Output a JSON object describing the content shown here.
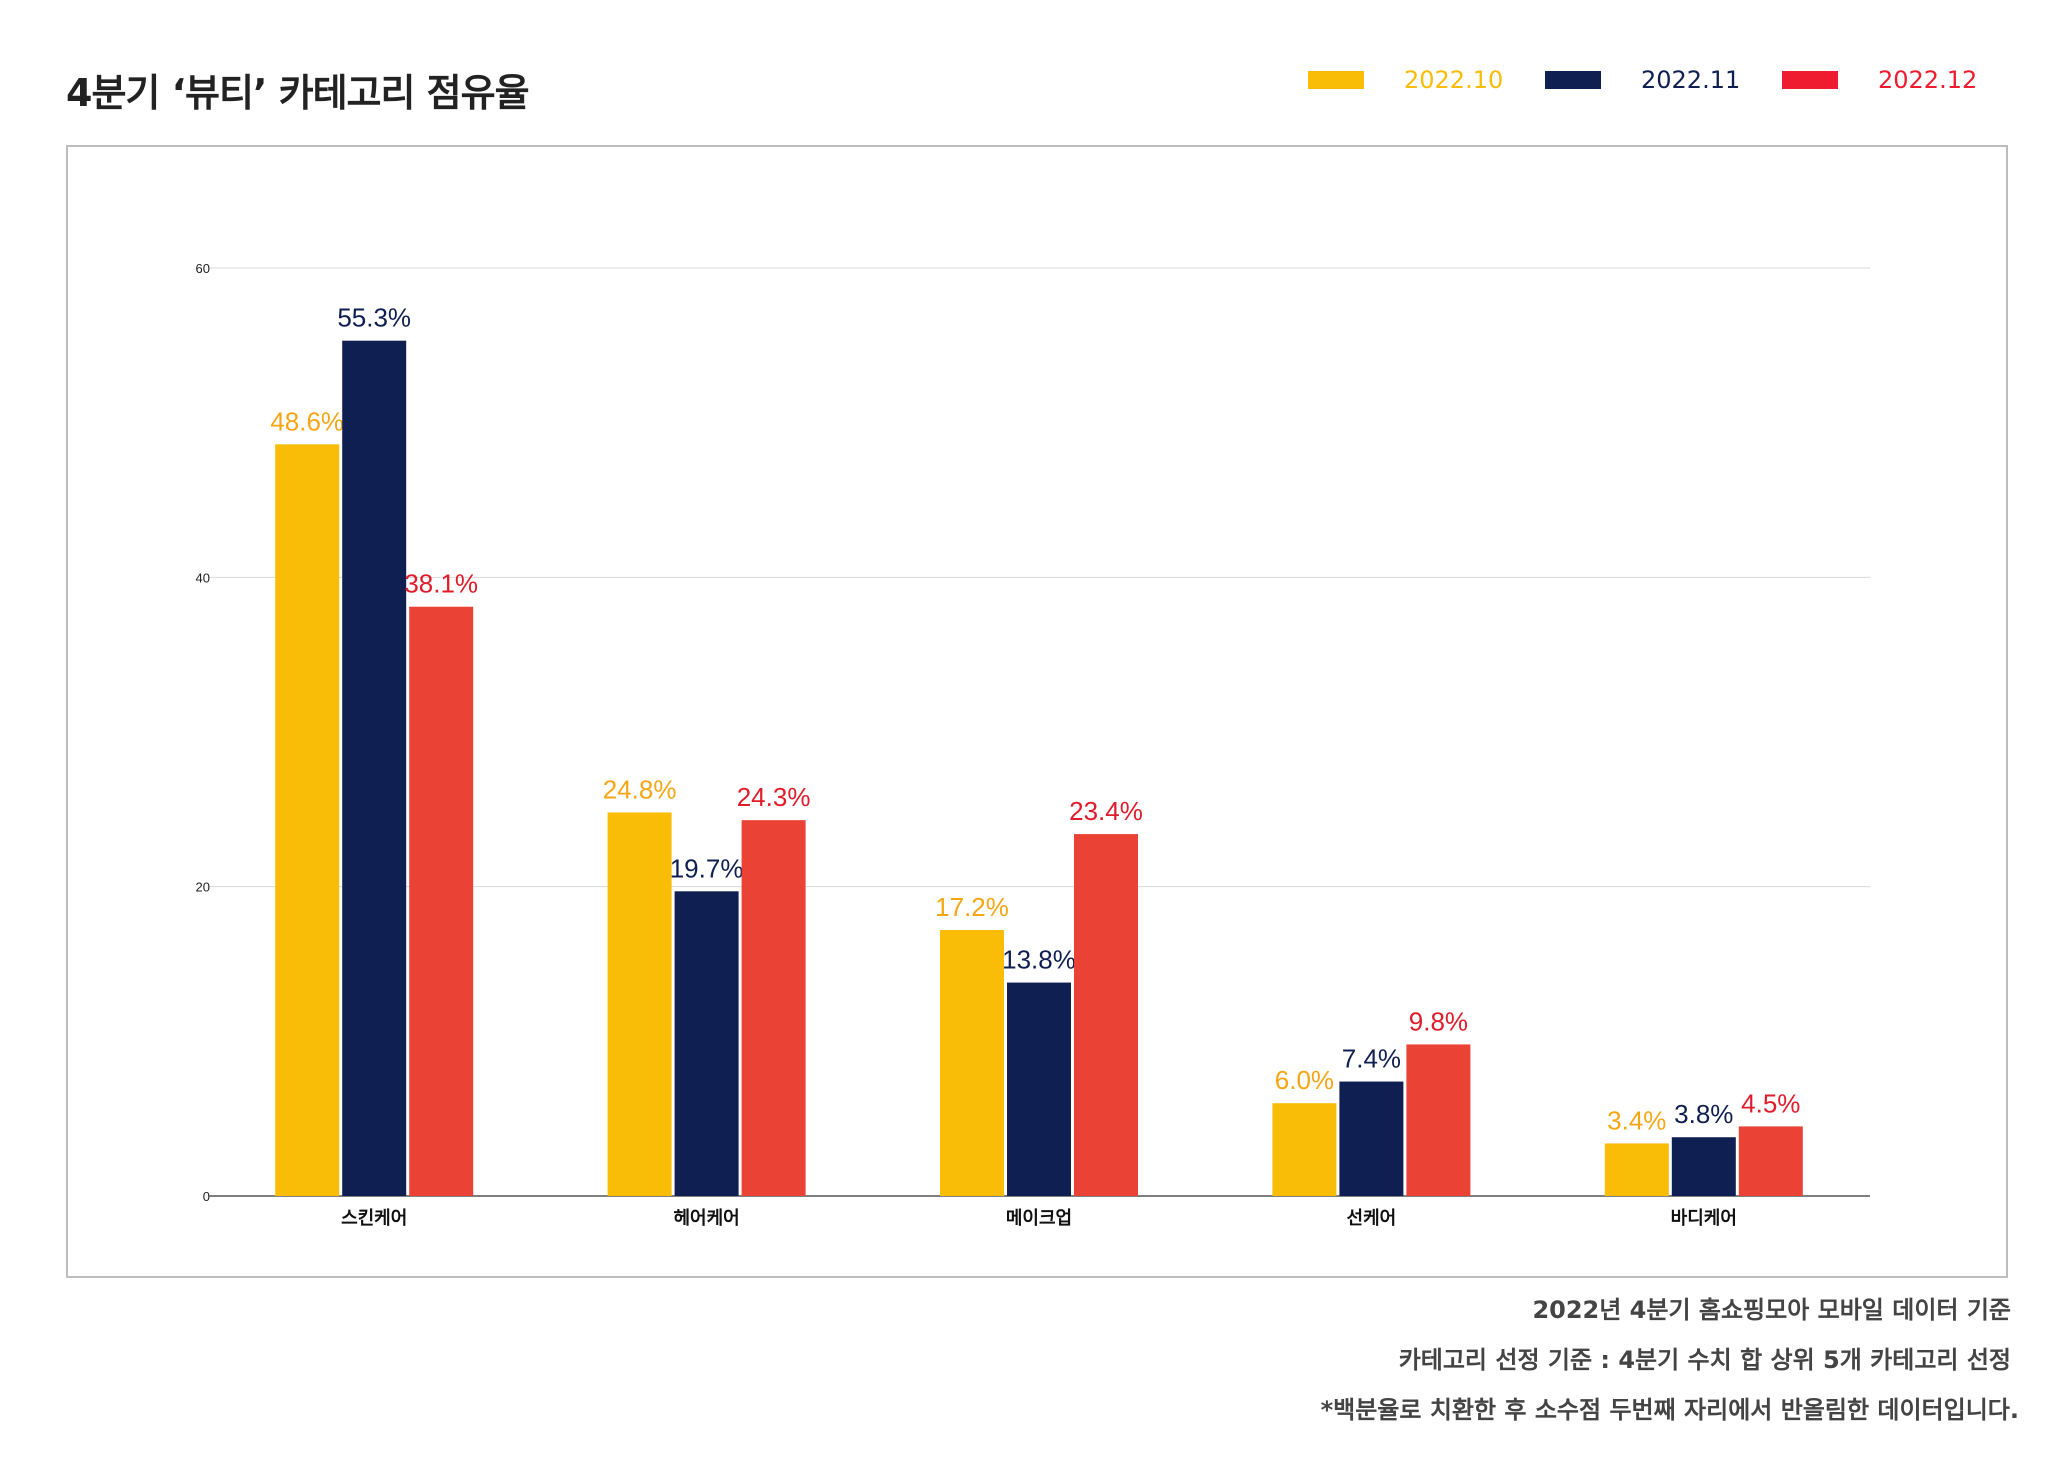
{
  "title": "4분기 ‘뷰티’ 카테고리 점유율",
  "legend": [
    {
      "label": "2022.10",
      "color": "#f9bc07"
    },
    {
      "label": "2022.11",
      "color": "#101f52"
    },
    {
      "label": "2022.12",
      "color": "#ee1c2e"
    }
  ],
  "footnotes": [
    "2022년 4분기 홈쇼핑모아 모바일 데이터 기준",
    "카테고리 선정 기준 : 4분기 수치 합 상위 5개 카테고리 선정",
    "*백분율로 치환한 후 소수점 두번째 자리에서 반올림한 데이터입니다."
  ],
  "chart_data": {
    "type": "bar",
    "categories": [
      "스킨케어",
      "헤어케어",
      "메이크업",
      "선케어",
      "바디케어"
    ],
    "series": [
      {
        "name": "2022.10",
        "color": "#f9bc07",
        "bar_color": "#f9bc07",
        "label_color": "#f5a615",
        "values": [
          48.6,
          24.8,
          17.2,
          6.0,
          3.4
        ],
        "labels": [
          "48.6%",
          "24.8%",
          "17.2%",
          "6.0%",
          "3.4%"
        ]
      },
      {
        "name": "2022.11",
        "color": "#101f52",
        "bar_color": "#101f52",
        "label_color": "#101f52",
        "values": [
          55.3,
          19.7,
          13.8,
          7.4,
          3.8
        ],
        "labels": [
          "55.3%",
          "19.7%",
          "13.8%",
          "7.4%",
          "3.8%"
        ]
      },
      {
        "name": "2022.12",
        "color": "#ee1c2e",
        "bar_color": "#ea4335",
        "label_color": "#e01b2a",
        "values": [
          38.1,
          24.3,
          23.4,
          9.8,
          4.5
        ],
        "labels": [
          "38.1%",
          "24.3%",
          "23.4%",
          "9.8%",
          "4.5%"
        ]
      }
    ],
    "yticks": [
      0,
      20,
      40,
      60
    ],
    "ylim": [
      0,
      60
    ],
    "grid": true,
    "legend_position": "top-right"
  }
}
